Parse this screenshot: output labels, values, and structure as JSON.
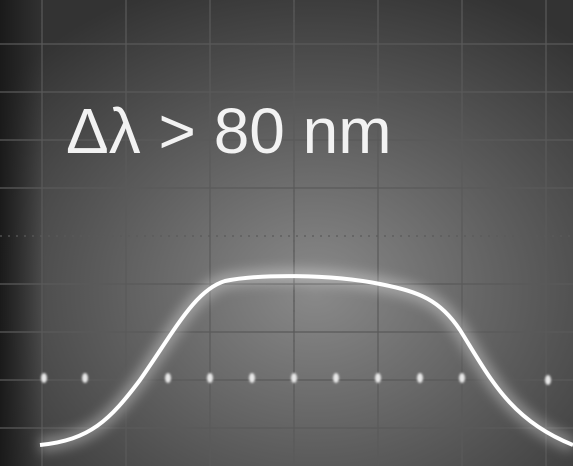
{
  "overlay_text": "Δλ > 80 nm"
}
